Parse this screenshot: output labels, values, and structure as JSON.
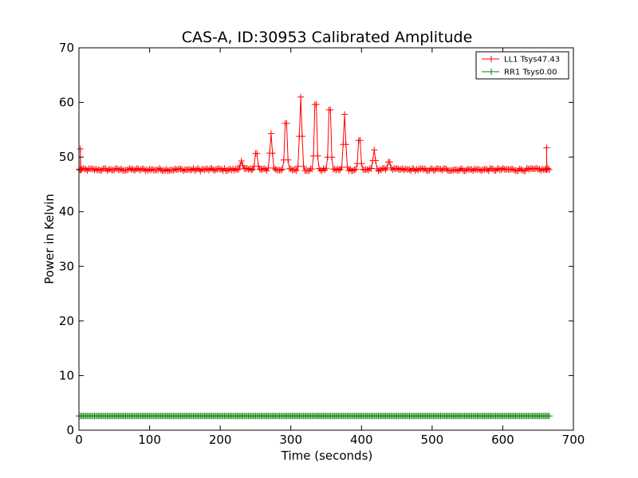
{
  "chart_data": {
    "type": "line",
    "title": "CAS-A, ID:30953 Calibrated Amplitude",
    "xlabel": "Time (seconds)",
    "ylabel": "Power in Kelvin",
    "xlim": [
      0,
      700
    ],
    "ylim": [
      0,
      70
    ],
    "xticks": [
      "0",
      "100",
      "200",
      "300",
      "400",
      "500",
      "600",
      "700"
    ],
    "yticks": [
      "0",
      "10",
      "20",
      "30",
      "40",
      "50",
      "60",
      "70"
    ],
    "grid": false,
    "legend_position": "top-right",
    "marker": "plus",
    "series": [
      {
        "name": "LL1 Tsys47.43",
        "color": "#ff0000",
        "baseline": 47.7,
        "x_start": 0,
        "x_end": 666,
        "edge_spikes": [
          {
            "x": 2,
            "y": 51.5
          },
          {
            "x": 662,
            "y": 51.7
          }
        ],
        "peaks": [
          {
            "x": 230,
            "y": 49.3
          },
          {
            "x": 251,
            "y": 51.3
          },
          {
            "x": 272,
            "y": 54.3
          },
          {
            "x": 293,
            "y": 58.0
          },
          {
            "x": 314,
            "y": 61.0
          },
          {
            "x": 335,
            "y": 62.2
          },
          {
            "x": 355,
            "y": 61.0
          },
          {
            "x": 376,
            "y": 57.8
          },
          {
            "x": 397,
            "y": 54.2
          },
          {
            "x": 418,
            "y": 51.3
          },
          {
            "x": 439,
            "y": 49.4
          }
        ]
      },
      {
        "name": "RR1 Tsys0.00",
        "color": "#008000",
        "baseline": 2.6,
        "x_start": 0,
        "x_end": 666
      }
    ]
  }
}
